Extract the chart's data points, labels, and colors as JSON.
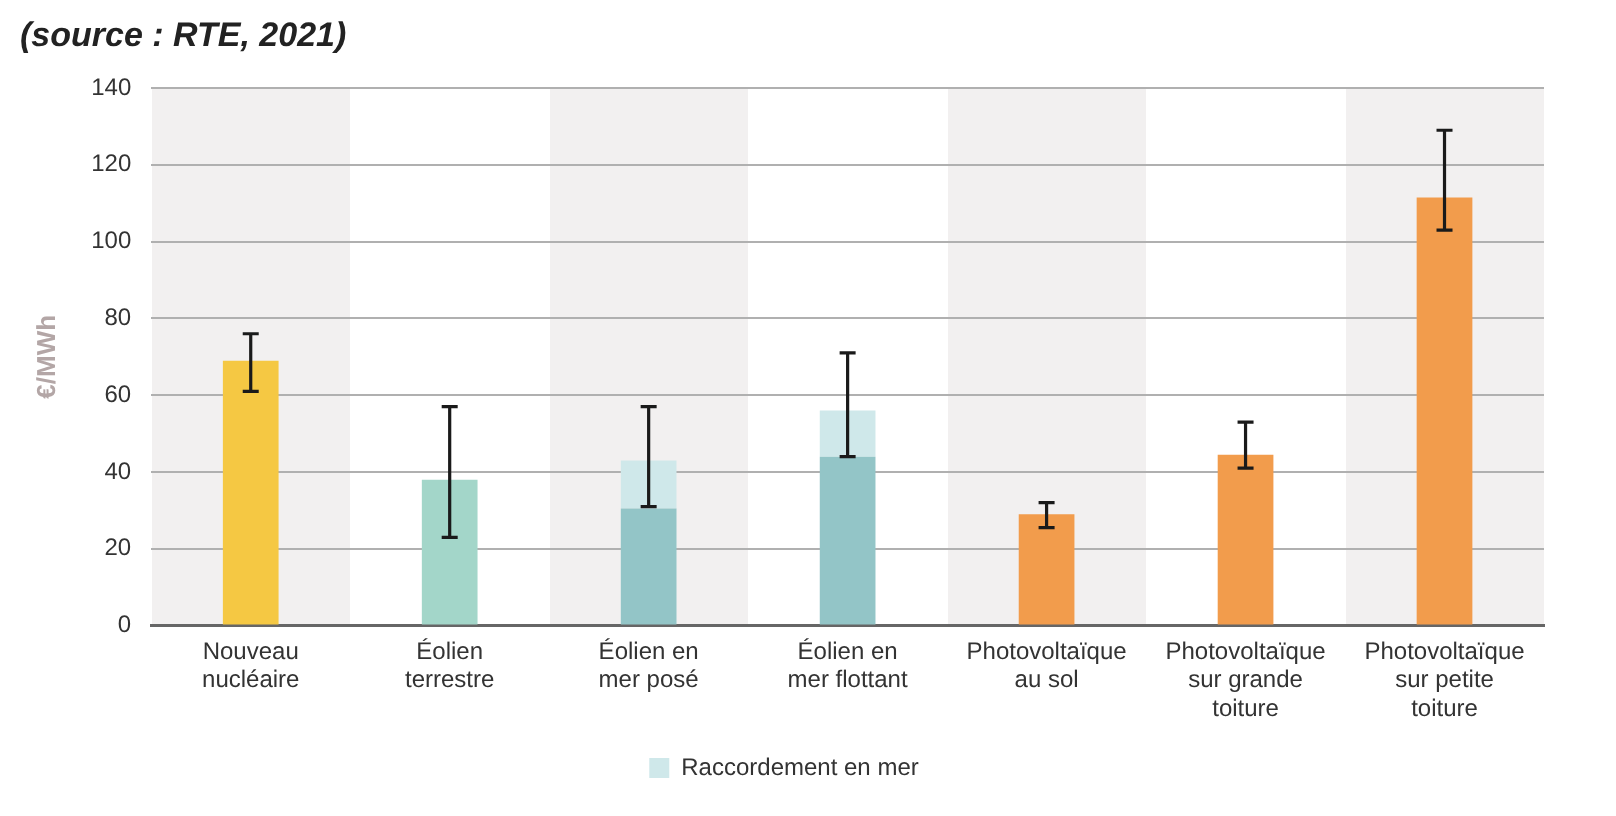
{
  "chart_data": {
    "type": "bar",
    "stacked": true,
    "annotations": [
      "(source : RTE, 2021)"
    ],
    "ylabel": "€/MWh",
    "categories": [
      "Nouveau nucléaire",
      "Éolien terrestre",
      "Éolien en mer posé",
      "Éolien en mer flottant",
      "Photovoltaïque au sol",
      "Photovoltaïque sur grande toiture",
      "Photovoltaïque sur petite toiture"
    ],
    "series": [
      {
        "colors": [
          "#f5c843",
          "#a3d6c9",
          "#93c5c7",
          "#93c5c7",
          "#f29c4c",
          "#f29c4c",
          "#f29c4c"
        ],
        "values": [
          69,
          38,
          30.5,
          44,
          29,
          44.5,
          111.5
        ],
        "errors": [
          [
            61,
            76
          ],
          [
            23,
            57
          ],
          [
            31,
            57
          ],
          [
            44,
            71
          ],
          [
            25.5,
            32
          ],
          [
            41,
            53
          ],
          [
            103,
            129
          ]
        ]
      },
      {
        "name": "Raccordement en mer",
        "color": "#cfe8ea",
        "values": [
          null,
          null,
          12.5,
          12,
          null,
          null,
          null
        ]
      }
    ],
    "ylim": [
      0,
      140
    ],
    "yticks": [
      0,
      20,
      40,
      60,
      80,
      100,
      120,
      140
    ],
    "grid": "y",
    "legend": "bottom"
  }
}
